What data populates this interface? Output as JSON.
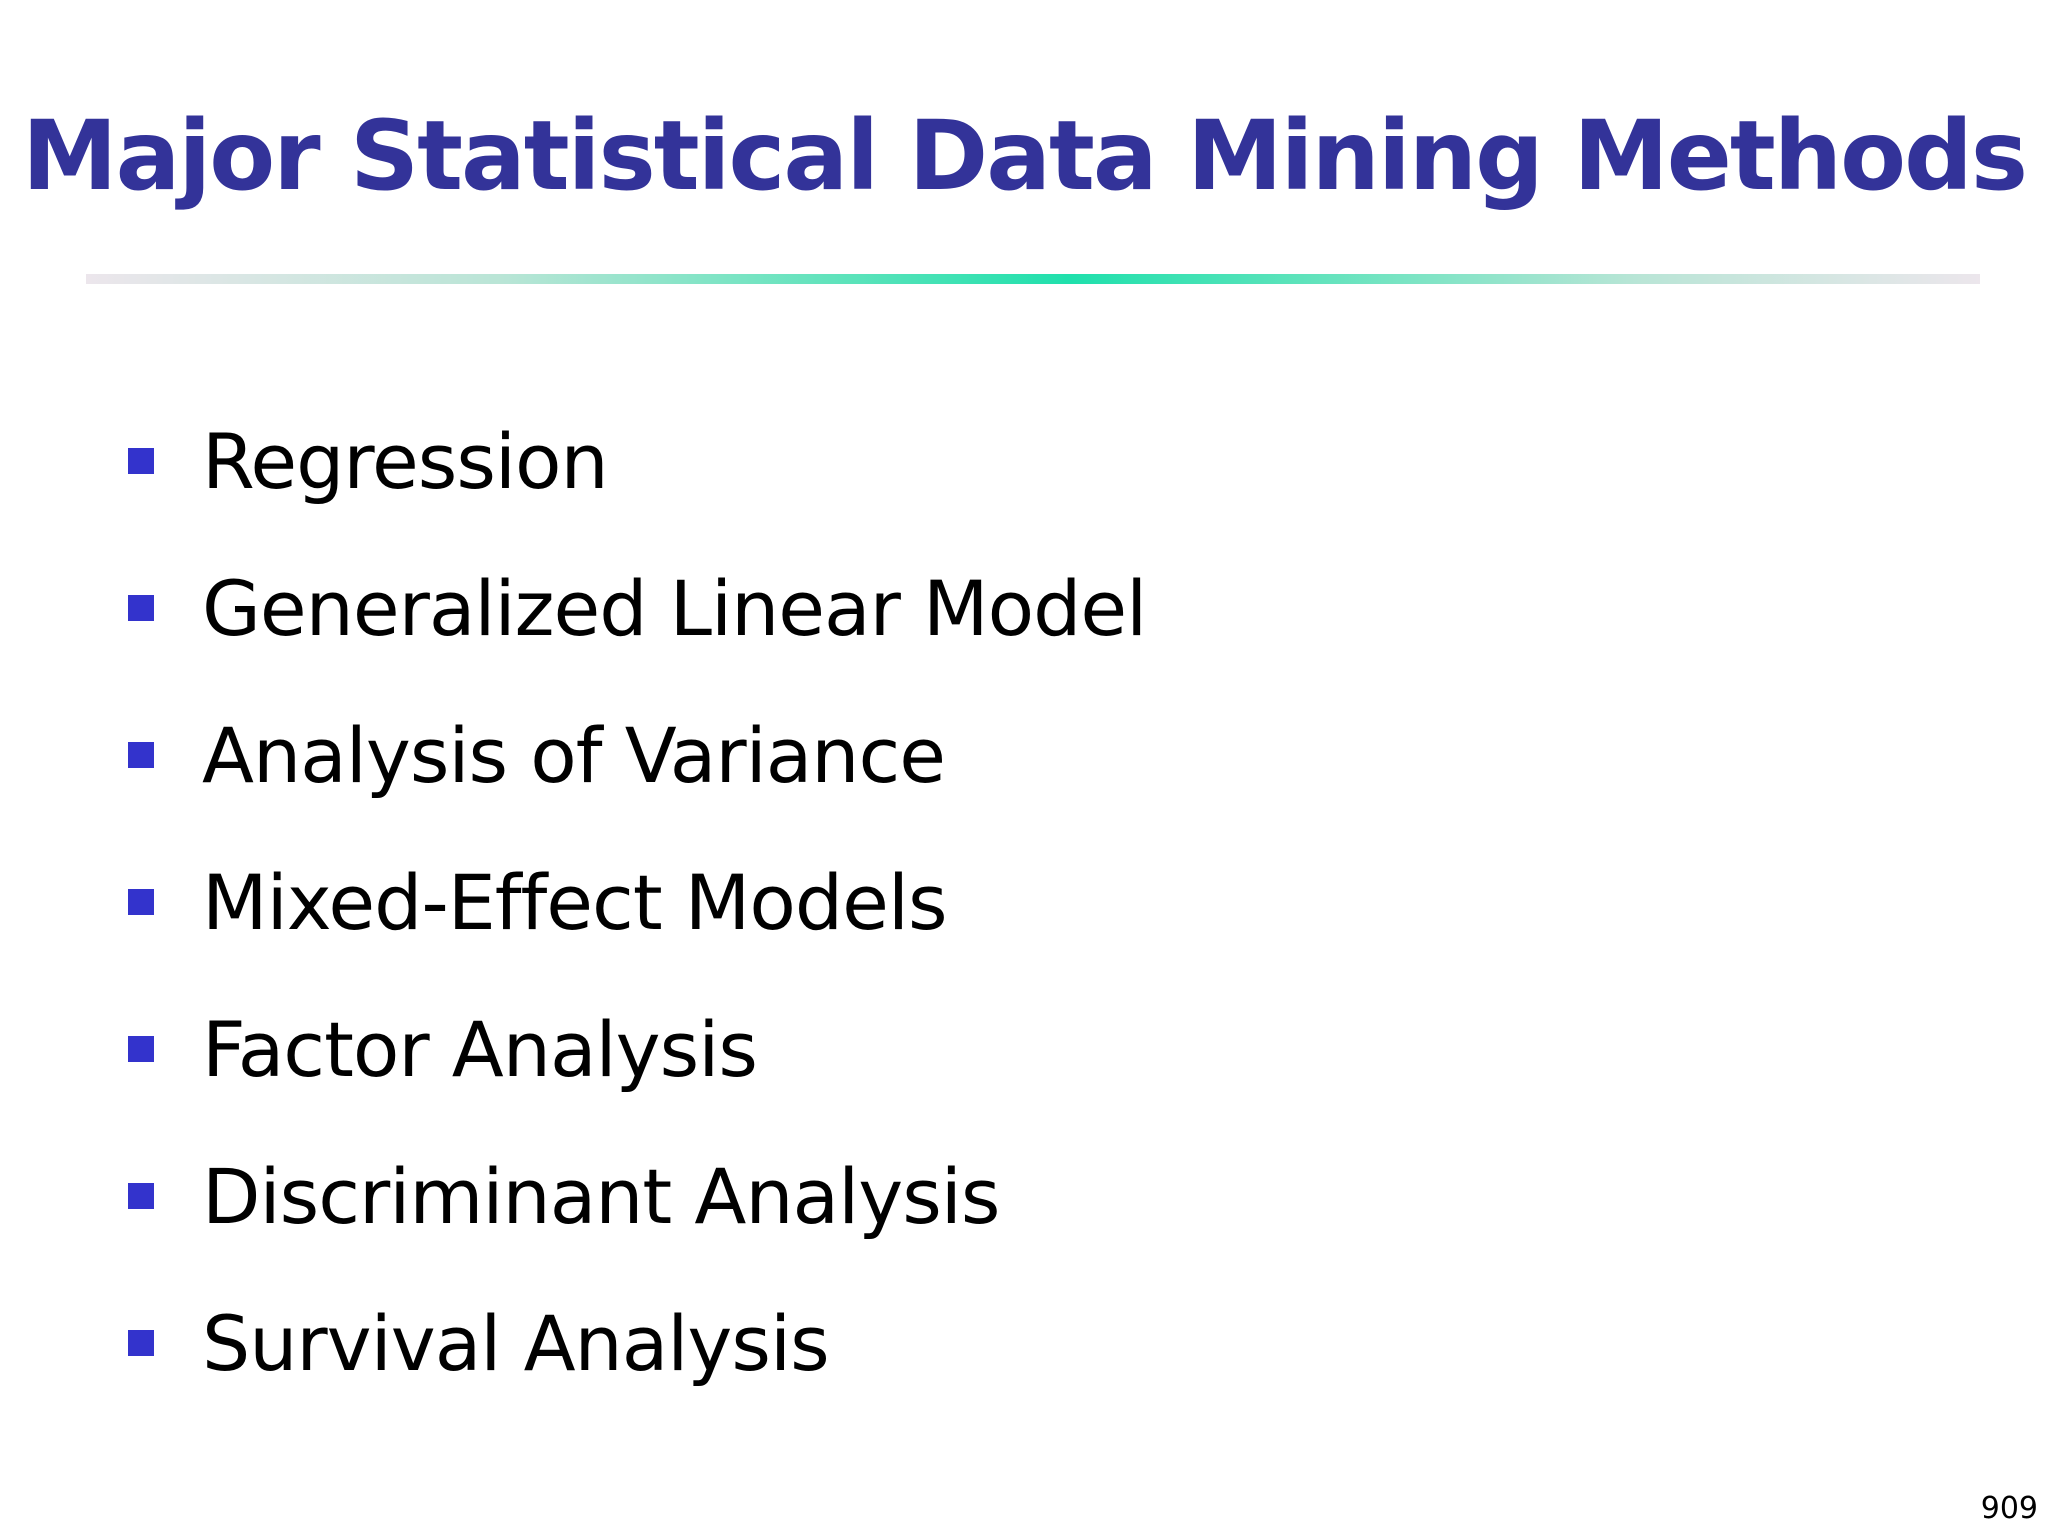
{
  "slide": {
    "title": "Major Statistical Data Mining Methods",
    "bullets": [
      "Regression",
      "Generalized Linear Model",
      "Analysis of Variance",
      "Mixed-Effect Models",
      "Factor Analysis",
      "Discriminant Analysis",
      "Survival Analysis"
    ],
    "page_number": "909"
  },
  "colors": {
    "title": "#333399",
    "bullet": "#3333cc",
    "body_text": "#000000",
    "rule_center": "#1fe0ac"
  }
}
